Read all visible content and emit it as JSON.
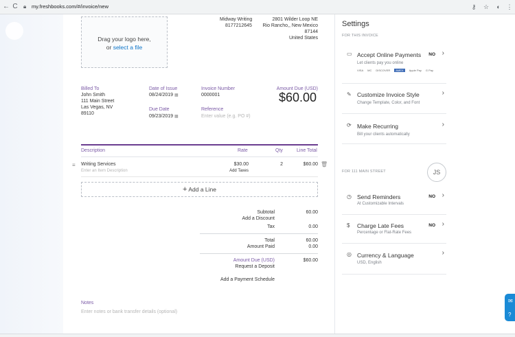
{
  "browser": {
    "url": "my.freshbooks.com/#/invoice/new",
    "back": "←",
    "reload": "C"
  },
  "logo_upload": {
    "line1": "Drag your logo here,",
    "line2_prefix": "or ",
    "line2_link": "select a file"
  },
  "company": {
    "name": "Midway Writing",
    "phone": "8177212645",
    "address1": "2801 Wilder Loop NE",
    "address2": "Rio Rancho,, New Mexico",
    "zip": "87144",
    "country": "United States"
  },
  "billed_to": {
    "label": "Billed To",
    "name": "John Smith",
    "street": "111 Main Street",
    "city": "Las Vegas, NV",
    "zip": "89110"
  },
  "dates": {
    "issue_label": "Date of Issue",
    "issue_value": "08/24/2019",
    "due_label": "Due Date",
    "due_value": "09/23/2019"
  },
  "invoice": {
    "number_label": "Invoice Number",
    "number_value": "0000001",
    "reference_label": "Reference",
    "reference_placeholder": "Enter value (e.g. PO #)",
    "amount_due_label": "Amount Due (USD)",
    "amount_due_value": "$60.00"
  },
  "table": {
    "headers": {
      "description": "Description",
      "rate": "Rate",
      "qty": "Qty",
      "line_total": "Line Total"
    },
    "rows": [
      {
        "description": "Writing Services",
        "description_placeholder": "Enter an Item Description",
        "rate": "$30.00",
        "add_taxes": "Add Taxes",
        "qty": "2",
        "line_total": "$60.00"
      }
    ],
    "add_line": "Add a Line"
  },
  "totals": {
    "subtotal_label": "Subtotal",
    "subtotal_value": "60.00",
    "add_discount": "Add a Discount",
    "tax_label": "Tax",
    "tax_value": "0.00",
    "total_label": "Total",
    "total_value": "60.00",
    "amount_paid_label": "Amount Paid",
    "amount_paid_value": "0.00",
    "amount_due_label": "Amount Due (USD)",
    "amount_due_value": "$60.00",
    "request_deposit": "Request a Deposit",
    "add_payment_schedule": "Add a Payment Schedule"
  },
  "notes": {
    "label": "Notes",
    "placeholder": "Enter notes or bank transfer details (optional)"
  },
  "settings": {
    "title": "Settings",
    "section_invoice": "FOR THIS INVOICE",
    "online_payments": {
      "title": "Accept Online Payments",
      "badge": "NO",
      "subtitle": "Let clients pay you online",
      "logos": [
        "VISA",
        "MC",
        "DISCOVER",
        "AMEX",
        "Apple Pay",
        "G Pay"
      ]
    },
    "invoice_style": {
      "title": "Customize Invoice Style",
      "subtitle": "Change Template, Color, and Font"
    },
    "recurring": {
      "title": "Make Recurring",
      "subtitle": "Bill your clients automatically"
    },
    "section_client": "FOR 111 MAIN STREET",
    "avatar_initials": "JS",
    "reminders": {
      "title": "Send Reminders",
      "badge": "NO",
      "subtitle": "At Customizable Intervals"
    },
    "late_fees": {
      "title": "Charge Late Fees",
      "badge": "NO",
      "subtitle": "Percentage or Flat-Rate Fees"
    },
    "currency": {
      "title": "Currency & Language",
      "subtitle": "USD, English"
    }
  }
}
